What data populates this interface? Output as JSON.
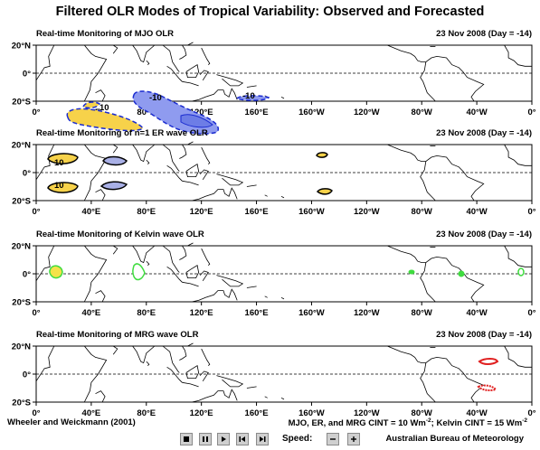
{
  "title": "Filtered OLR Modes of Tropical Variability: Observed and Forecasted",
  "panels": [
    {
      "title": "Real-time Monitoring of MJO OLR",
      "date": "23 Nov 2008 (Day = -14)",
      "contour_labels": [
        "-10",
        "10",
        "-10"
      ]
    },
    {
      "title": "Real-time Monitoring of n=1 ER wave OLR",
      "date": "23 Nov 2008 (Day = -14)",
      "contour_labels": [
        "10",
        "10"
      ]
    },
    {
      "title": "Real-time Monitoring of Kelvin wave OLR",
      "date": "23 Nov 2008 (Day = -14)",
      "contour_labels": []
    },
    {
      "title": "Real-time Monitoring of MRG wave OLR",
      "date": "23 Nov 2008 (Day = -14)",
      "contour_labels": []
    }
  ],
  "axes": {
    "x_ticks": [
      "0°",
      "40°E",
      "80°E",
      "120°E",
      "160°E",
      "160°W",
      "120°W",
      "80°W",
      "40°W",
      "0°"
    ],
    "y_ticks": [
      "20°N",
      "0°",
      "20°S"
    ]
  },
  "footer": {
    "left": "Wheeler and Weickmann (2001)",
    "right_main": "MJO, ER, and MRG CINT = 10 Wm",
    "right_mid": "; Kelvin CINT = 15 Wm",
    "sup": "-2"
  },
  "controls": {
    "buttons": [
      "stop-icon",
      "pause-icon",
      "play-icon",
      "step-back-icon",
      "step-forward-icon"
    ],
    "speed_label": "Speed:",
    "speed_buttons": [
      "minus-icon",
      "plus-icon"
    ],
    "credit": "Australian Bureau of Meteorology"
  },
  "colors": {
    "positive_fill": "#f7d24a",
    "mjo_negative_fill": "#8f9bef",
    "er_negative_fill": "#a9b0e6",
    "kelvin_fill": "#f4e24a",
    "kelvin_outline": "#3fdc3f",
    "mrg_outline": "#e02020",
    "negative_outline": "#1a2bd0"
  },
  "chart_data": [
    {
      "type": "contour-map",
      "title": "Real-time Monitoring of MJO OLR",
      "xlim": [
        0,
        360
      ],
      "ylim": [
        -20,
        20
      ],
      "anomalies": [
        {
          "sign": "positive",
          "label": "10",
          "center": [
            30,
            -10
          ]
        },
        {
          "sign": "positive",
          "center": [
            20,
            1
          ]
        },
        {
          "sign": "negative",
          "label": "-10",
          "center": [
            95,
            3
          ]
        },
        {
          "sign": "negative",
          "center": [
            112,
            -8
          ]
        },
        {
          "sign": "negative",
          "label": "-10",
          "center": [
            148,
            10
          ]
        }
      ]
    },
    {
      "type": "contour-map",
      "title": "Real-time Monitoring of n=1 ER wave OLR",
      "xlim": [
        0,
        360
      ],
      "ylim": [
        -20,
        20
      ],
      "anomalies": [
        {
          "sign": "positive",
          "label": "10",
          "center": [
            13,
            9
          ]
        },
        {
          "sign": "positive",
          "label": "10",
          "center": [
            13,
            -12
          ]
        },
        {
          "sign": "negative",
          "center": [
            50,
            7
          ]
        },
        {
          "sign": "negative",
          "center": [
            50,
            -9
          ]
        },
        {
          "sign": "positive",
          "center": [
            187,
            14
          ]
        },
        {
          "sign": "positive",
          "center": [
            190,
            -15
          ]
        }
      ]
    },
    {
      "type": "contour-map",
      "title": "Real-time Monitoring of Kelvin wave OLR",
      "xlim": [
        0,
        360
      ],
      "ylim": [
        -20,
        20
      ],
      "anomalies": [
        {
          "sign": "positive",
          "center": [
            11,
            -1
          ]
        },
        {
          "sign": "positive",
          "center": [
            68,
            0
          ]
        },
        {
          "sign": "positive",
          "center": [
            270,
            0
          ]
        },
        {
          "sign": "positive",
          "center": [
            305,
            0
          ]
        },
        {
          "sign": "positive",
          "center": [
            346,
            0
          ]
        }
      ]
    },
    {
      "type": "contour-map",
      "title": "Real-time Monitoring of MRG wave OLR",
      "xlim": [
        0,
        360
      ],
      "ylim": [
        -20,
        20
      ],
      "anomalies": [
        {
          "sign": "positive",
          "center": [
            325,
            8
          ]
        },
        {
          "sign": "positive",
          "center": [
            322,
            -11
          ]
        }
      ]
    }
  ]
}
